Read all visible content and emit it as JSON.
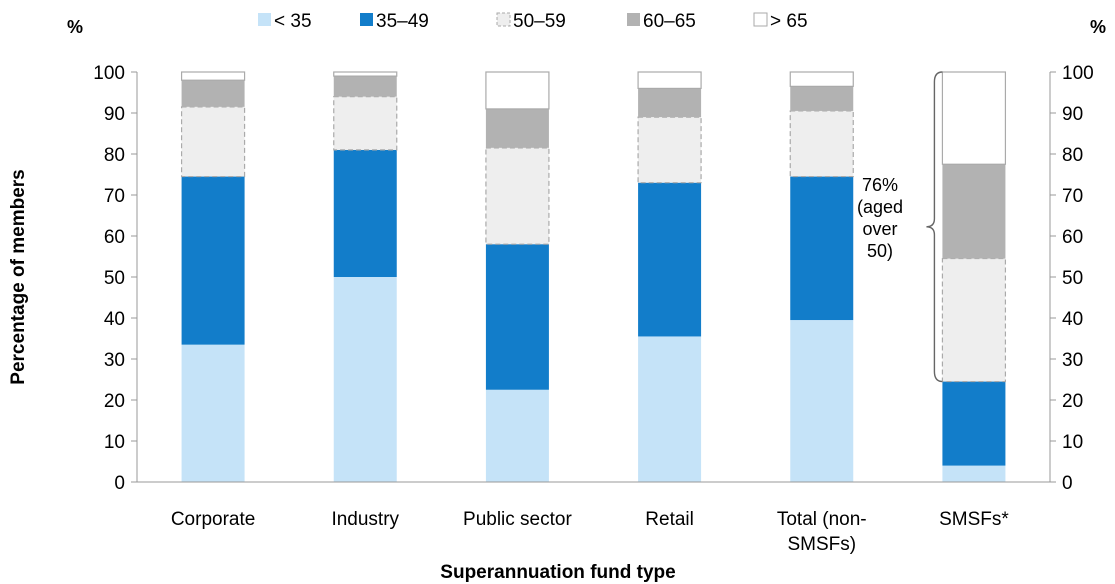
{
  "chart_data": {
    "type": "bar",
    "stacked": true,
    "ylabel": "Percentage of members",
    "xlabel": "Superannuation fund type",
    "unit_left": "%",
    "unit_right": "%",
    "ylim": [
      0,
      100
    ],
    "yticks": [
      0,
      10,
      20,
      30,
      40,
      50,
      60,
      70,
      80,
      90,
      100
    ],
    "legend_position": "top",
    "categories": [
      [
        "Corporate"
      ],
      [
        "Industry"
      ],
      [
        "Public sector"
      ],
      [
        "Retail"
      ],
      [
        "Total (non-",
        "SMSFs)"
      ],
      [
        "SMSFs*"
      ]
    ],
    "series": [
      {
        "name": "< 35",
        "color": "#c5e3f8",
        "values": [
          33.5,
          50,
          22.5,
          35.5,
          39.5,
          4
        ]
      },
      {
        "name": "35–49",
        "color": "#127dca",
        "values": [
          41,
          31,
          35.5,
          37.5,
          35,
          20.5
        ]
      },
      {
        "name": "50–59",
        "color": "#eeeeee",
        "values": [
          17,
          13,
          23.5,
          16,
          16,
          30
        ]
      },
      {
        "name": "60–65",
        "color": "#b2b2b2",
        "values": [
          6.5,
          5,
          9.5,
          7,
          6,
          23
        ]
      },
      {
        "name": "> 65",
        "color": "#ffffff",
        "values": [
          2,
          1,
          9,
          4,
          3.5,
          22.5
        ]
      }
    ],
    "annotation": {
      "lines": [
        "76%",
        "(aged",
        "over",
        "50)"
      ],
      "from": 24.5,
      "to": 100
    }
  }
}
